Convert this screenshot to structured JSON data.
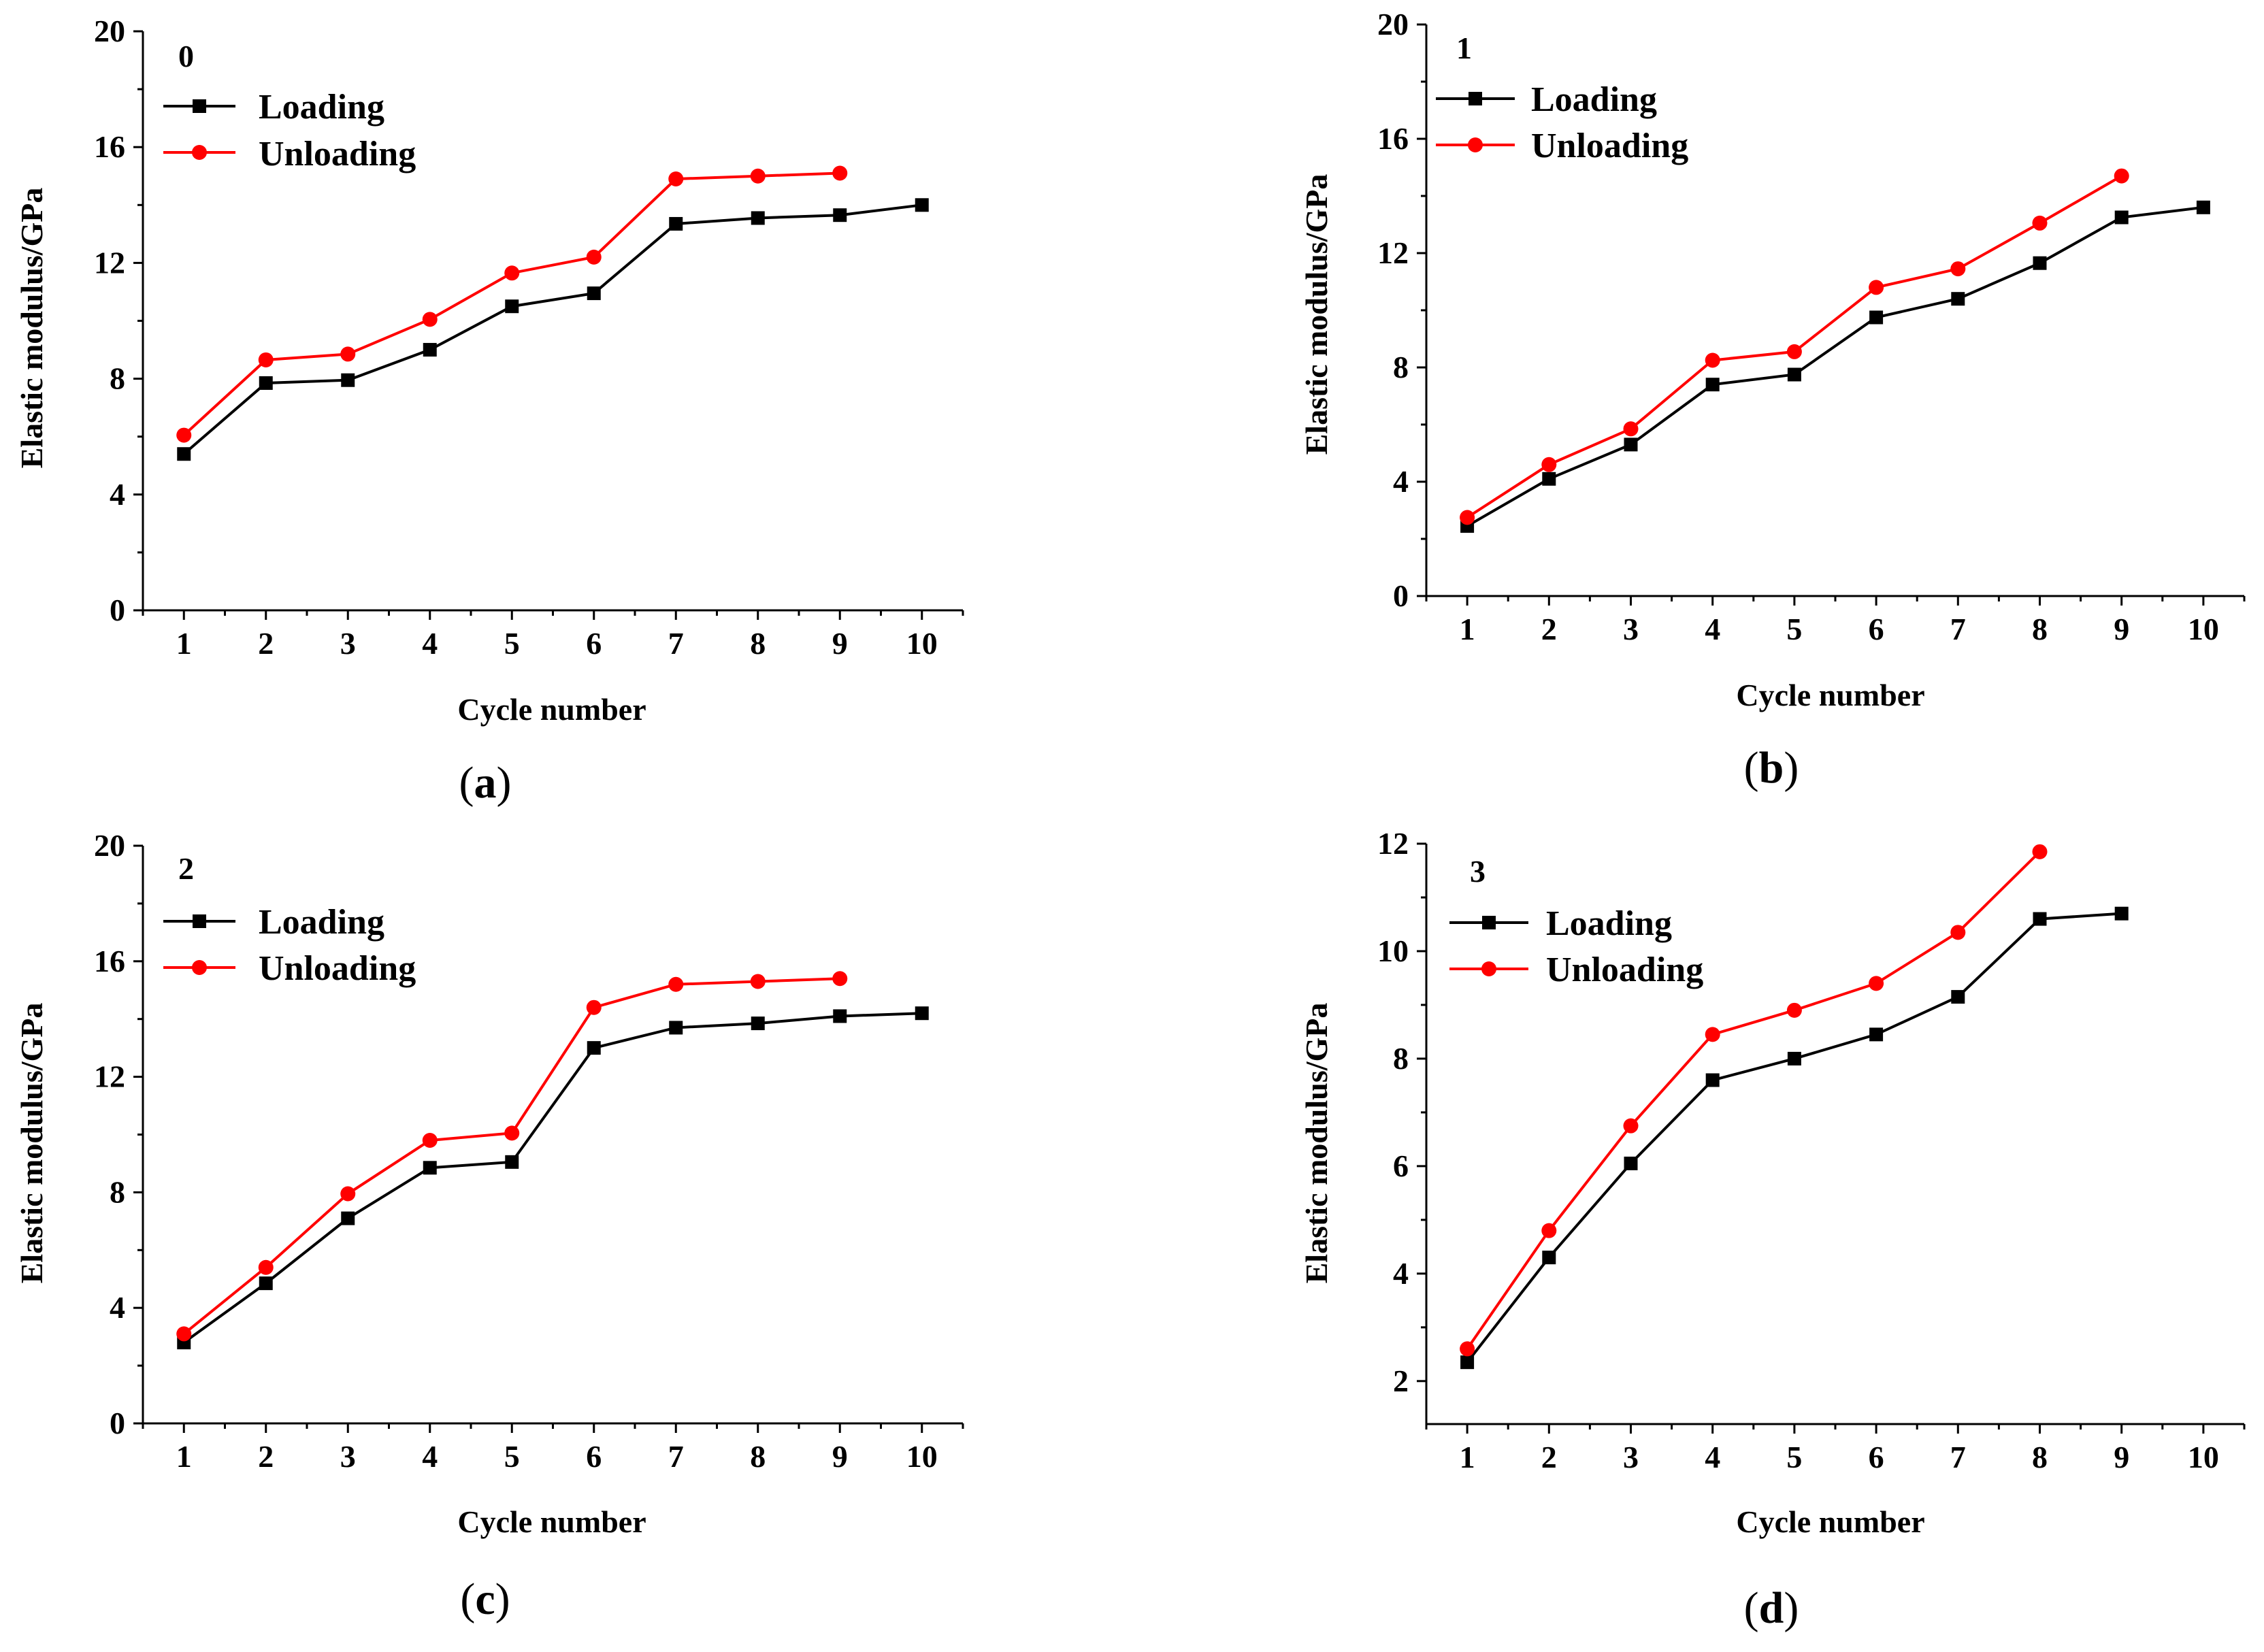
{
  "colors": {
    "loading": "#000000",
    "unloading": "#ff0000",
    "axis": "#000000"
  },
  "chart_data": [
    {
      "type": "line",
      "panel_caption": "(a)",
      "caption_open": "(",
      "caption_letter": "a",
      "caption_close": ")",
      "tag": "0",
      "xlabel": "Cycle number",
      "ylabel": "Elastic modulus/GPa",
      "xlim": [
        0.5,
        10.5
      ],
      "ylim": [
        0,
        20
      ],
      "x_ticks": [
        1,
        2,
        3,
        4,
        5,
        6,
        7,
        8,
        9,
        10
      ],
      "x_tick_labels": [
        "1",
        "2",
        "3",
        "4",
        "5",
        "6",
        "7",
        "8",
        "9",
        "10"
      ],
      "y_ticks": [
        0,
        4,
        8,
        12,
        16,
        20
      ],
      "y_tick_labels": [
        "0",
        "4",
        "8",
        "12",
        "16",
        "20"
      ],
      "legend": [
        "Loading",
        "Unloading"
      ],
      "series": [
        {
          "name": "Loading",
          "marker": "square",
          "x": [
            1,
            2,
            3,
            4,
            5,
            6,
            7,
            8,
            9,
            10
          ],
          "values": [
            5.4,
            7.85,
            7.95,
            9.0,
            10.5,
            10.95,
            13.35,
            13.55,
            13.65,
            14.0
          ]
        },
        {
          "name": "Unloading",
          "marker": "circle",
          "x": [
            1,
            2,
            3,
            4,
            5,
            6,
            7,
            8,
            9
          ],
          "values": [
            6.05,
            8.65,
            8.85,
            10.05,
            11.65,
            12.2,
            14.9,
            15.0,
            15.1
          ]
        }
      ]
    },
    {
      "type": "line",
      "panel_caption": "(b)",
      "caption_open": "(",
      "caption_letter": "b",
      "caption_close": ")",
      "tag": "1",
      "xlabel": "Cycle number",
      "ylabel": "Elastic modulus/GPa",
      "xlim": [
        0.5,
        10.5
      ],
      "ylim": [
        0,
        20
      ],
      "x_ticks": [
        1,
        2,
        3,
        4,
        5,
        6,
        7,
        8,
        9,
        10
      ],
      "x_tick_labels": [
        "1",
        "2",
        "3",
        "4",
        "5",
        "6",
        "7",
        "8",
        "9",
        "10"
      ],
      "y_ticks": [
        0,
        4,
        8,
        12,
        16,
        20
      ],
      "y_tick_labels": [
        "0",
        "4",
        "8",
        "12",
        "16",
        "20"
      ],
      "legend": [
        "Loading",
        "Unloading"
      ],
      "series": [
        {
          "name": "Loading",
          "marker": "square",
          "x": [
            1,
            2,
            3,
            4,
            5,
            6,
            7,
            8,
            9,
            10
          ],
          "values": [
            2.45,
            4.1,
            5.3,
            7.4,
            7.75,
            9.75,
            10.4,
            11.65,
            13.25,
            13.6
          ]
        },
        {
          "name": "Unloading",
          "marker": "circle",
          "x": [
            1,
            2,
            3,
            4,
            5,
            6,
            7,
            8,
            9
          ],
          "values": [
            2.75,
            4.6,
            5.85,
            8.25,
            8.55,
            10.8,
            11.45,
            13.05,
            14.7
          ]
        }
      ]
    },
    {
      "type": "line",
      "panel_caption": "(c)",
      "caption_open": "(",
      "caption_letter": "c",
      "caption_close": ")",
      "tag": "2",
      "xlabel": "Cycle number",
      "ylabel": "Elastic modulus/GPa",
      "xlim": [
        0.5,
        10.5
      ],
      "ylim": [
        0,
        20
      ],
      "x_ticks": [
        1,
        2,
        3,
        4,
        5,
        6,
        7,
        8,
        9,
        10
      ],
      "x_tick_labels": [
        "1",
        "2",
        "3",
        "4",
        "5",
        "6",
        "7",
        "8",
        "9",
        "10"
      ],
      "y_ticks": [
        0,
        4,
        8,
        12,
        16,
        20
      ],
      "y_tick_labels": [
        "0",
        "4",
        "8",
        "12",
        "16",
        "20"
      ],
      "legend": [
        "Loading",
        "Unloading"
      ],
      "series": [
        {
          "name": "Loading",
          "marker": "square",
          "x": [
            1,
            2,
            3,
            4,
            5,
            6,
            7,
            8,
            9,
            10
          ],
          "values": [
            2.8,
            4.85,
            7.1,
            8.85,
            9.05,
            13.0,
            13.7,
            13.85,
            14.1,
            14.2
          ]
        },
        {
          "name": "Unloading",
          "marker": "circle",
          "x": [
            1,
            2,
            3,
            4,
            5,
            6,
            7,
            8,
            9
          ],
          "values": [
            3.1,
            5.4,
            7.95,
            9.8,
            10.05,
            14.4,
            15.2,
            15.3,
            15.4
          ]
        }
      ]
    },
    {
      "type": "line",
      "panel_caption": "(d)",
      "caption_open": "(",
      "caption_letter": "d",
      "caption_close": ")",
      "tag": "3",
      "xlabel": "Cycle number",
      "ylabel": "Elastic modulus/GPa",
      "xlim": [
        0.5,
        10.5
      ],
      "ylim": [
        1.2,
        12
      ],
      "x_ticks": [
        1,
        2,
        3,
        4,
        5,
        6,
        7,
        8,
        9,
        10
      ],
      "x_tick_labels": [
        "1",
        "2",
        "3",
        "4",
        "5",
        "6",
        "7",
        "8",
        "9",
        "10"
      ],
      "y_ticks": [
        2,
        4,
        6,
        8,
        10,
        12
      ],
      "y_tick_labels": [
        "2",
        "4",
        "6",
        "8",
        "10",
        "12"
      ],
      "legend": [
        "Loading",
        "Unloading"
      ],
      "series": [
        {
          "name": "Loading",
          "marker": "square",
          "x": [
            1,
            2,
            3,
            4,
            5,
            6,
            7,
            8,
            9
          ],
          "values": [
            2.35,
            4.3,
            6.05,
            7.6,
            8.0,
            8.45,
            9.15,
            10.6,
            10.7
          ]
        },
        {
          "name": "Unloading",
          "marker": "circle",
          "x": [
            1,
            2,
            3,
            4,
            5,
            6,
            7,
            8
          ],
          "values": [
            2.6,
            4.8,
            6.75,
            8.45,
            8.9,
            9.4,
            10.35,
            11.85
          ]
        }
      ]
    }
  ]
}
